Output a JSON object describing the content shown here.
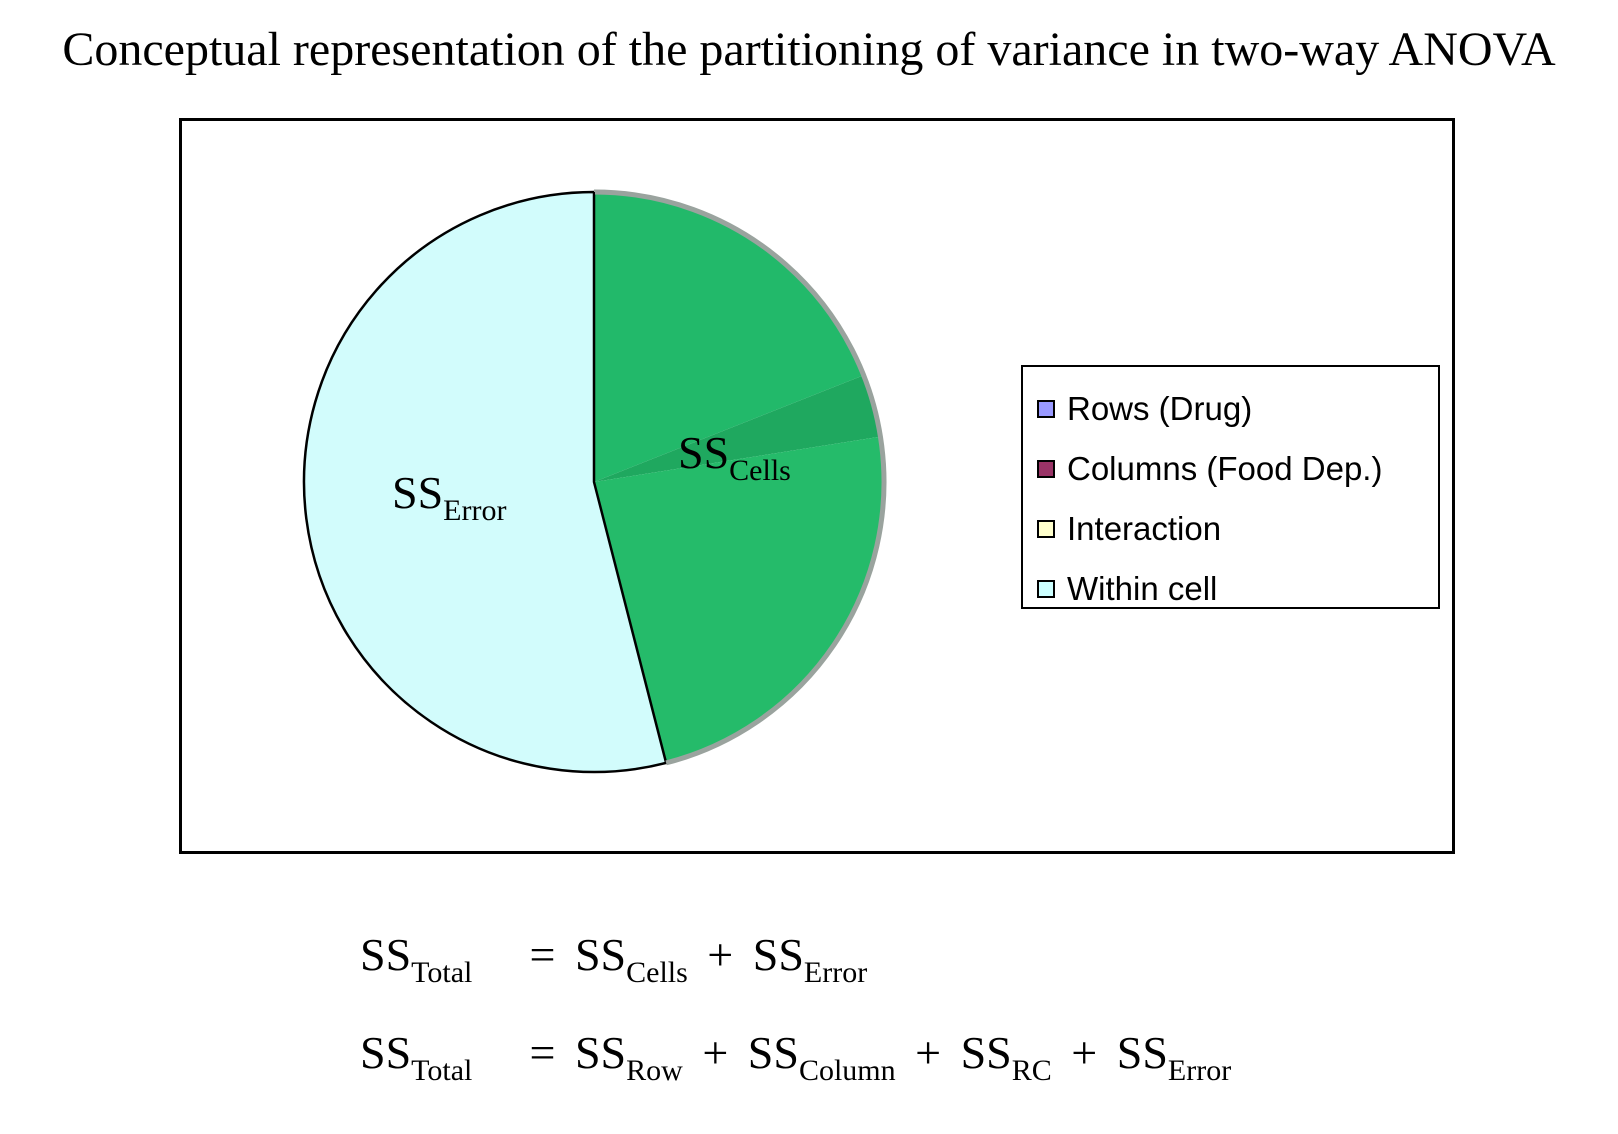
{
  "title": "Conceptual representation of the partitioning of variance in two-way ANOVA",
  "chart_data": {
    "type": "pie",
    "title": "",
    "slices": [
      {
        "label": "Rows (Drug)",
        "value": 19.0,
        "color": "#22b96a"
      },
      {
        "label": "Columns (Food Dep.)",
        "value": 3.5,
        "color": "#1fa85f"
      },
      {
        "label": "Interaction",
        "value": 23.5,
        "color": "#25bb6a"
      },
      {
        "label": "Within cell",
        "value": 54.0,
        "color": "#d2fcfc"
      }
    ],
    "start_angle_deg": 0,
    "direction": "clockwise",
    "legend": {
      "position": "right",
      "entries": [
        {
          "label": "Rows (Drug)",
          "color": "#9999ff"
        },
        {
          "label": "Columns (Food Dep.)",
          "color": "#993366"
        },
        {
          "label": "Interaction",
          "color": "#ffffcc"
        },
        {
          "label": "Within cell",
          "color": "#ccffff"
        }
      ]
    },
    "annotations": [
      {
        "base": "SS",
        "sub": "Cells"
      },
      {
        "base": "SS",
        "sub": "Error"
      }
    ]
  },
  "equations": [
    {
      "lhs": {
        "base": "SS",
        "sub": "Total"
      },
      "terms": [
        {
          "base": "SS",
          "sub": "Cells"
        },
        {
          "base": "SS",
          "sub": "Error"
        }
      ]
    },
    {
      "lhs": {
        "base": "SS",
        "sub": "Total"
      },
      "terms": [
        {
          "base": "SS",
          "sub": "Row"
        },
        {
          "base": "SS",
          "sub": "Column"
        },
        {
          "base": "SS",
          "sub": "RC"
        },
        {
          "base": "SS",
          "sub": "Error"
        }
      ]
    }
  ]
}
